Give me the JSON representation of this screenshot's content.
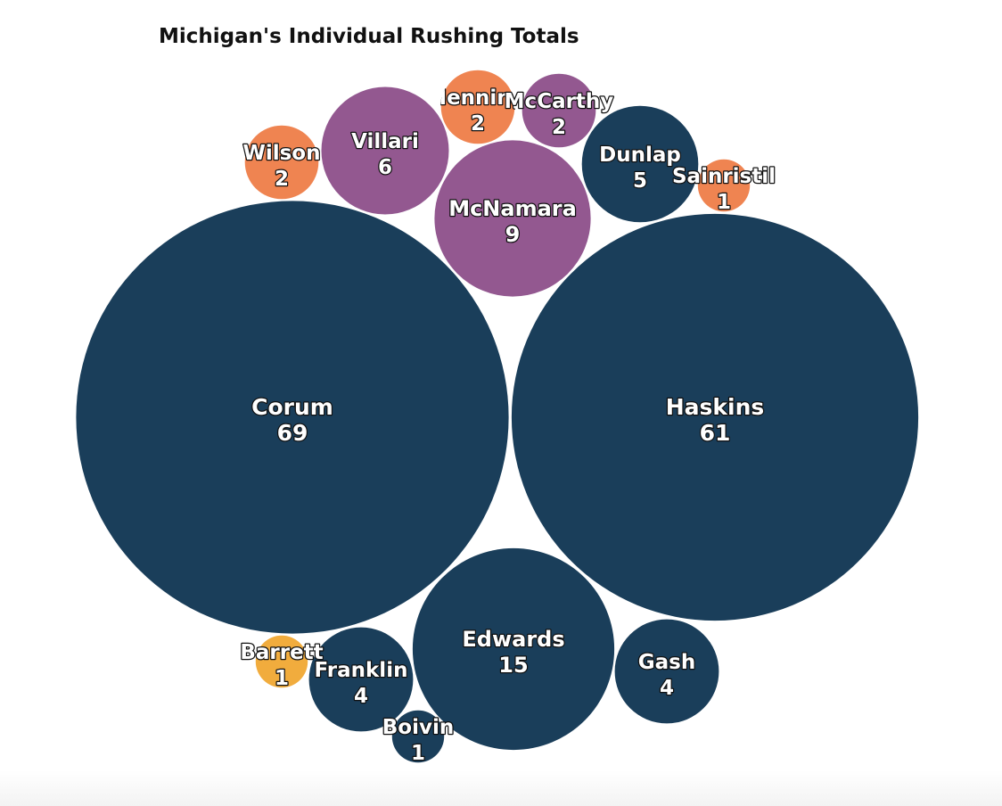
{
  "chart_data": {
    "type": "bubble",
    "title": "Michigan's Individual Rushing Totals",
    "colors": {
      "navy": "#1a3e5a",
      "purple": "#935890",
      "orange": "#ef8451",
      "yellow": "#f1ac3d"
    },
    "nodes": [
      {
        "name": "Corum",
        "value": 69,
        "color": "#1a3e5a"
      },
      {
        "name": "Haskins",
        "value": 61,
        "color": "#1a3e5a"
      },
      {
        "name": "Edwards",
        "value": 15,
        "color": "#1a3e5a"
      },
      {
        "name": "McNamara",
        "value": 9,
        "color": "#935890"
      },
      {
        "name": "Villari",
        "value": 6,
        "color": "#935890"
      },
      {
        "name": "Dunlap",
        "value": 5,
        "color": "#1a3e5a"
      },
      {
        "name": "Gash",
        "value": 4,
        "color": "#1a3e5a"
      },
      {
        "name": "Franklin",
        "value": 4,
        "color": "#1a3e5a"
      },
      {
        "name": "Wilson",
        "value": 2,
        "color": "#ef8451"
      },
      {
        "name": "Henning",
        "value": 2,
        "color": "#ef8451"
      },
      {
        "name": "McCarthy",
        "value": 2,
        "color": "#935890"
      },
      {
        "name": "Sainristil",
        "value": 1,
        "color": "#ef8451"
      },
      {
        "name": "Barrett",
        "value": 1,
        "color": "#f1ac3d"
      },
      {
        "name": "Boivin",
        "value": 1,
        "color": "#1a3e5a"
      }
    ]
  }
}
